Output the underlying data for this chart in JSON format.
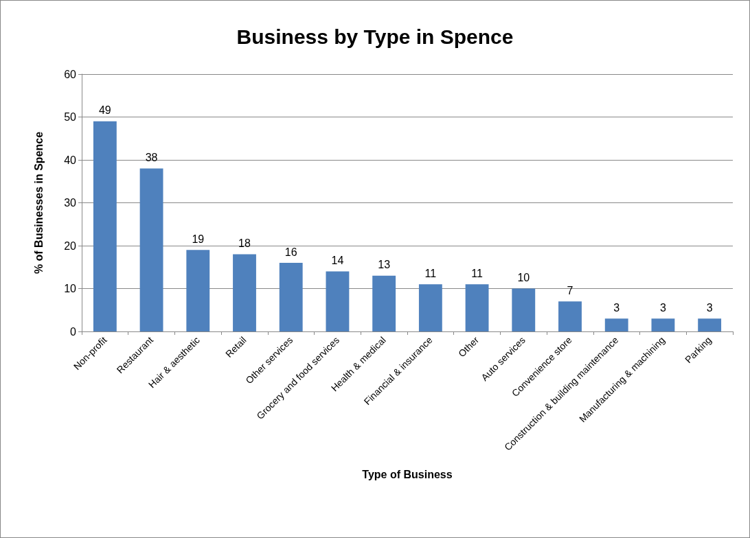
{
  "chart_data": {
    "type": "bar",
    "title": "Business by Type in Spence",
    "xlabel": "Type of Business",
    "ylabel": "% of Businesses in Spence",
    "categories": [
      "Non-profit",
      "Restaurant",
      "Hair & aesthetic",
      "Retail",
      "Other services",
      "Grocery and food services",
      "Health & medical",
      "Financial & insurance",
      "Other",
      "Auto services",
      "Convenience store",
      "Construction & building maintenance",
      "Manufacturing & machining",
      "Parking"
    ],
    "values": [
      49,
      38,
      19,
      18,
      16,
      14,
      13,
      11,
      11,
      10,
      7,
      3,
      3,
      3
    ],
    "color": "#4f81bd",
    "ylim": [
      0,
      60
    ],
    "yticks": [
      0,
      10,
      20,
      30,
      40,
      50,
      60
    ],
    "grid": "y",
    "data_labels": true
  }
}
